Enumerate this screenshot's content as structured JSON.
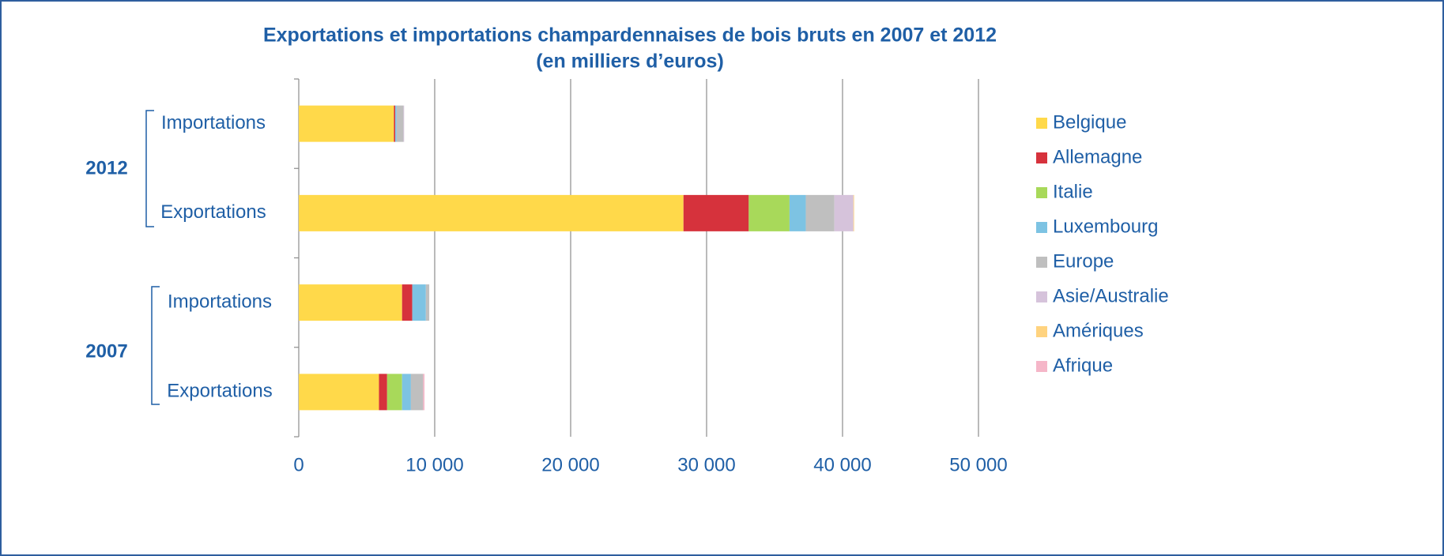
{
  "chart_data": {
    "type": "stacked_bar_horizontal",
    "title": "Exportations et importations champardennaises de bois bruts en 2007 et 2012",
    "subtitle": "(en milliers d’euros)",
    "categories": [
      "Importations",
      "Exportations",
      "Importations",
      "Exportations"
    ],
    "groups": [
      "2012",
      "2007"
    ],
    "series": [
      {
        "name": "Belgique",
        "color": "#ffd94a",
        "values": [
          7000,
          28300,
          7600,
          5900
        ]
      },
      {
        "name": "Allemagne",
        "color": "#d6323c",
        "values": [
          100,
          4800,
          750,
          600
        ]
      },
      {
        "name": "Italie",
        "color": "#a8d95a",
        "values": [
          0,
          3000,
          0,
          1100
        ]
      },
      {
        "name": "Luxembourg",
        "color": "#7dc3e3",
        "values": [
          100,
          1200,
          1000,
          650
        ]
      },
      {
        "name": "Europe",
        "color": "#bfbfbf",
        "values": [
          500,
          2100,
          250,
          900
        ]
      },
      {
        "name": "Asie/Australie",
        "color": "#d6c3db",
        "values": [
          50,
          1400,
          0,
          0
        ]
      },
      {
        "name": "Amériques",
        "color": "#ffd37f",
        "values": [
          0,
          50,
          0,
          0
        ]
      },
      {
        "name": "Afrique",
        "color": "#f5b6c8",
        "values": [
          0,
          0,
          0,
          100
        ]
      }
    ],
    "xlim": [
      0,
      50000
    ],
    "xticks": [
      0,
      {
        "value": 10000,
        "label": "10 000"
      },
      {
        "value": 20000,
        "label": "20 000"
      },
      {
        "value": 30000,
        "label": "30 000"
      },
      {
        "value": 40000,
        "label": "40 000"
      },
      {
        "value": 50000,
        "label": "50 000"
      }
    ],
    "grid": true,
    "legend": "right"
  }
}
